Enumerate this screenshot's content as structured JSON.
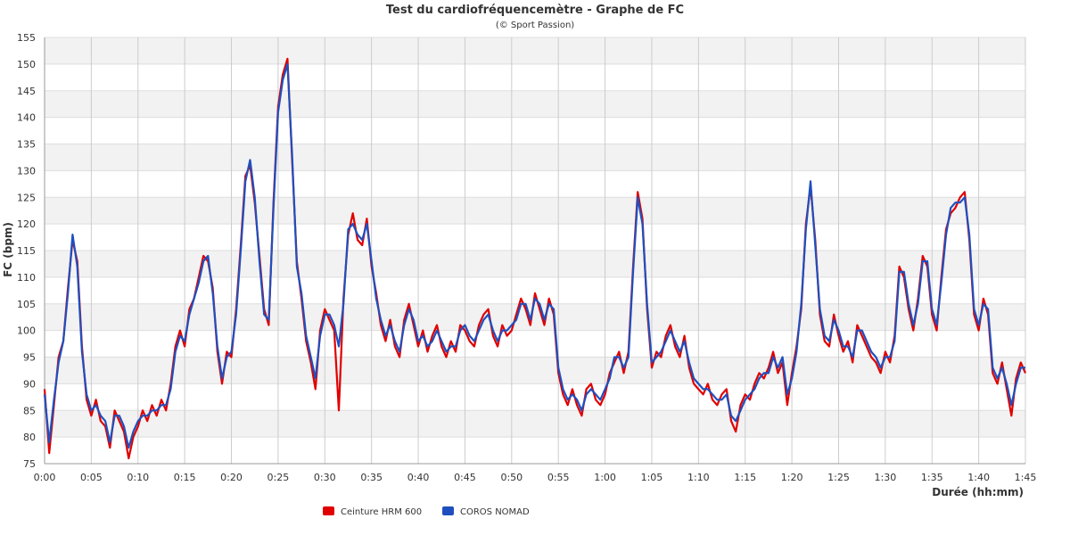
{
  "chart_data": {
    "type": "line",
    "title": "Test du cardiofréquencemètre - Graphe de FC",
    "subtitle": "(© Sport Passion)",
    "xlabel": "Durée (hh:mm)",
    "ylabel": "FC (bpm)",
    "x_unit": "minutes",
    "xlim": [
      0,
      105
    ],
    "ylim": [
      75,
      155
    ],
    "x_ticks": [
      {
        "value": 0,
        "label": "0:00"
      },
      {
        "value": 5,
        "label": "0:05"
      },
      {
        "value": 10,
        "label": "0:10"
      },
      {
        "value": 15,
        "label": "0:15"
      },
      {
        "value": 20,
        "label": "0:20"
      },
      {
        "value": 25,
        "label": "0:25"
      },
      {
        "value": 30,
        "label": "0:30"
      },
      {
        "value": 35,
        "label": "0:35"
      },
      {
        "value": 40,
        "label": "0:40"
      },
      {
        "value": 45,
        "label": "0:45"
      },
      {
        "value": 50,
        "label": "0:50"
      },
      {
        "value": 55,
        "label": "0:55"
      },
      {
        "value": 60,
        "label": "1:00"
      },
      {
        "value": 65,
        "label": "1:05"
      },
      {
        "value": 70,
        "label": "1:10"
      },
      {
        "value": 75,
        "label": "1:15"
      },
      {
        "value": 80,
        "label": "1:20"
      },
      {
        "value": 85,
        "label": "1:25"
      },
      {
        "value": 90,
        "label": "1:30"
      },
      {
        "value": 95,
        "label": "1:35"
      },
      {
        "value": 100,
        "label": "1:40"
      },
      {
        "value": 105,
        "label": "1:45"
      }
    ],
    "y_ticks": [
      75,
      80,
      85,
      90,
      95,
      100,
      105,
      110,
      115,
      120,
      125,
      130,
      135,
      140,
      145,
      150,
      155
    ],
    "grid": true,
    "alternating_bands": true,
    "legend_position": "bottom-center",
    "series": [
      {
        "name": "Ceinture HRM 600",
        "color": "#e00000",
        "x": [
          0,
          0.5,
          1,
          1.5,
          2,
          2.5,
          3,
          3.5,
          4,
          4.5,
          5,
          5.5,
          6,
          6.5,
          7,
          7.5,
          8,
          8.5,
          9,
          9.5,
          10,
          10.5,
          11,
          11.5,
          12,
          12.5,
          13,
          13.5,
          14,
          14.5,
          15,
          15.5,
          16,
          16.5,
          17,
          17.5,
          18,
          18.5,
          19,
          19.5,
          20,
          20.5,
          21,
          21.5,
          22,
          22.5,
          23,
          23.5,
          24,
          24.5,
          25,
          25.5,
          26,
          26.5,
          27,
          27.5,
          28,
          28.5,
          29,
          29.5,
          30,
          30.5,
          31,
          31.5,
          32,
          32.5,
          33,
          33.5,
          34,
          34.5,
          35,
          35.5,
          36,
          36.5,
          37,
          37.5,
          38,
          38.5,
          39,
          39.5,
          40,
          40.5,
          41,
          41.5,
          42,
          42.5,
          43,
          43.5,
          44,
          44.5,
          45,
          45.5,
          46,
          46.5,
          47,
          47.5,
          48,
          48.5,
          49,
          49.5,
          50,
          50.5,
          51,
          51.5,
          52,
          52.5,
          53,
          53.5,
          54,
          54.5,
          55,
          55.5,
          56,
          56.5,
          57,
          57.5,
          58,
          58.5,
          59,
          59.5,
          60,
          60.5,
          61,
          61.5,
          62,
          62.5,
          63,
          63.5,
          64,
          64.5,
          65,
          65.5,
          66,
          66.5,
          67,
          67.5,
          68,
          68.5,
          69,
          69.5,
          70,
          70.5,
          71,
          71.5,
          72,
          72.5,
          73,
          73.5,
          74,
          74.5,
          75,
          75.5,
          76,
          76.5,
          77,
          77.5,
          78,
          78.5,
          79,
          79.5,
          80,
          80.5,
          81,
          81.5,
          82,
          82.5,
          83,
          83.5,
          84,
          84.5,
          85,
          85.5,
          86,
          86.5,
          87,
          87.5,
          88,
          88.5,
          89,
          89.5,
          90,
          90.5,
          91,
          91.5,
          92,
          92.5,
          93,
          93.5,
          94,
          94.5,
          95,
          95.5,
          96,
          96.5,
          97,
          97.5,
          98,
          98.5,
          99,
          99.5,
          100,
          100.5,
          101,
          101.5,
          102,
          102.5,
          103,
          103.5,
          104,
          104.5,
          105
        ],
        "y": [
          89,
          77,
          86,
          95,
          98,
          108,
          117,
          113,
          97,
          87,
          84,
          87,
          83,
          82,
          78,
          85,
          83,
          81,
          76,
          80,
          82,
          85,
          83,
          86,
          84,
          87,
          85,
          90,
          97,
          100,
          97,
          104,
          106,
          110,
          114,
          113,
          108,
          96,
          90,
          96,
          95,
          104,
          116,
          129,
          131,
          124,
          114,
          104,
          101,
          124,
          142,
          148,
          151,
          132,
          113,
          106,
          98,
          94,
          89,
          100,
          104,
          102,
          100,
          85,
          106,
          118,
          122,
          117,
          116,
          121,
          112,
          107,
          101,
          98,
          102,
          97,
          95,
          102,
          105,
          101,
          97,
          100,
          96,
          99,
          101,
          97,
          95,
          98,
          96,
          101,
          100,
          98,
          97,
          101,
          103,
          104,
          99,
          97,
          101,
          99,
          100,
          103,
          106,
          104,
          101,
          107,
          104,
          101,
          106,
          103,
          92,
          88,
          86,
          89,
          86,
          84,
          89,
          90,
          87,
          86,
          88,
          92,
          94,
          96,
          92,
          96,
          112,
          126,
          121,
          104,
          93,
          96,
          95,
          99,
          101,
          97,
          95,
          99,
          93,
          90,
          89,
          88,
          90,
          87,
          86,
          88,
          89,
          83,
          81,
          86,
          88,
          87,
          90,
          92,
          91,
          93,
          96,
          92,
          94,
          86,
          92,
          97,
          104,
          120,
          127,
          117,
          103,
          98,
          97,
          103,
          99,
          96,
          98,
          94,
          101,
          99,
          97,
          95,
          94,
          92,
          96,
          94,
          99,
          112,
          110,
          104,
          100,
          106,
          114,
          112,
          103,
          100,
          110,
          119,
          122,
          123,
          125,
          126,
          117,
          103,
          100,
          106,
          103,
          92,
          90,
          94,
          89,
          84,
          91,
          94,
          92
        ]
      },
      {
        "name": "COROS NOMAD",
        "color": "#1f4fbf",
        "x": [
          0,
          0.5,
          1,
          1.5,
          2,
          2.5,
          3,
          3.5,
          4,
          4.5,
          5,
          5.5,
          6,
          6.5,
          7,
          7.5,
          8,
          8.5,
          9,
          9.5,
          10,
          10.5,
          11,
          11.5,
          12,
          12.5,
          13,
          13.5,
          14,
          14.5,
          15,
          15.5,
          16,
          16.5,
          17,
          17.5,
          18,
          18.5,
          19,
          19.5,
          20,
          20.5,
          21,
          21.5,
          22,
          22.5,
          23,
          23.5,
          24,
          24.5,
          25,
          25.5,
          26,
          26.5,
          27,
          27.5,
          28,
          28.5,
          29,
          29.5,
          30,
          30.5,
          31,
          31.5,
          32,
          32.5,
          33,
          33.5,
          34,
          34.5,
          35,
          35.5,
          36,
          36.5,
          37,
          37.5,
          38,
          38.5,
          39,
          39.5,
          40,
          40.5,
          41,
          41.5,
          42,
          42.5,
          43,
          43.5,
          44,
          44.5,
          45,
          45.5,
          46,
          46.5,
          47,
          47.5,
          48,
          48.5,
          49,
          49.5,
          50,
          50.5,
          51,
          51.5,
          52,
          52.5,
          53,
          53.5,
          54,
          54.5,
          55,
          55.5,
          56,
          56.5,
          57,
          57.5,
          58,
          58.5,
          59,
          59.5,
          60,
          60.5,
          61,
          61.5,
          62,
          62.5,
          63,
          63.5,
          64,
          64.5,
          65,
          65.5,
          66,
          66.5,
          67,
          67.5,
          68,
          68.5,
          69,
          69.5,
          70,
          70.5,
          71,
          71.5,
          72,
          72.5,
          73,
          73.5,
          74,
          74.5,
          75,
          75.5,
          76,
          76.5,
          77,
          77.5,
          78,
          78.5,
          79,
          79.5,
          80,
          80.5,
          81,
          81.5,
          82,
          82.5,
          83,
          83.5,
          84,
          84.5,
          85,
          85.5,
          86,
          86.5,
          87,
          87.5,
          88,
          88.5,
          89,
          89.5,
          90,
          90.5,
          91,
          91.5,
          92,
          92.5,
          93,
          93.5,
          94,
          94.5,
          95,
          95.5,
          96,
          96.5,
          97,
          97.5,
          98,
          98.5,
          99,
          99.5,
          100,
          100.5,
          101,
          101.5,
          102,
          102.5,
          103,
          103.5,
          104,
          104.5,
          105
        ],
        "y": [
          88,
          79,
          87,
          94,
          98,
          107,
          118,
          112,
          96,
          88,
          85,
          86,
          84,
          83,
          79,
          84,
          84,
          82,
          78,
          81,
          83,
          84,
          84,
          85,
          85,
          86,
          86,
          89,
          96,
          99,
          98,
          103,
          106,
          109,
          113,
          114,
          107,
          97,
          91,
          95,
          96,
          103,
          115,
          128,
          132,
          125,
          113,
          103,
          102,
          123,
          141,
          147,
          150,
          133,
          112,
          107,
          99,
          95,
          91,
          99,
          103,
          103,
          101,
          97,
          105,
          119,
          120,
          118,
          117,
          120,
          113,
          106,
          102,
          99,
          101,
          98,
          96,
          101,
          104,
          102,
          98,
          99,
          97,
          98,
          100,
          98,
          96,
          97,
          97,
          100,
          101,
          99,
          98,
          100,
          102,
          103,
          100,
          98,
          100,
          100,
          101,
          102,
          105,
          105,
          102,
          106,
          105,
          102,
          105,
          104,
          93,
          89,
          87,
          88,
          87,
          85,
          88,
          89,
          88,
          87,
          89,
          91,
          95,
          95,
          93,
          95,
          111,
          125,
          120,
          105,
          94,
          95,
          96,
          98,
          100,
          98,
          96,
          98,
          94,
          91,
          90,
          89,
          89,
          88,
          87,
          87,
          88,
          84,
          83,
          85,
          87,
          88,
          89,
          91,
          92,
          92,
          95,
          93,
          95,
          88,
          91,
          96,
          105,
          119,
          128,
          116,
          104,
          99,
          98,
          102,
          100,
          97,
          97,
          95,
          100,
          100,
          98,
          96,
          95,
          93,
          95,
          95,
          98,
          111,
          111,
          105,
          101,
          105,
          113,
          113,
          104,
          101,
          109,
          118,
          123,
          124,
          124,
          125,
          118,
          104,
          101,
          105,
          104,
          93,
          91,
          93,
          90,
          86,
          90,
          93,
          93
        ]
      }
    ]
  }
}
